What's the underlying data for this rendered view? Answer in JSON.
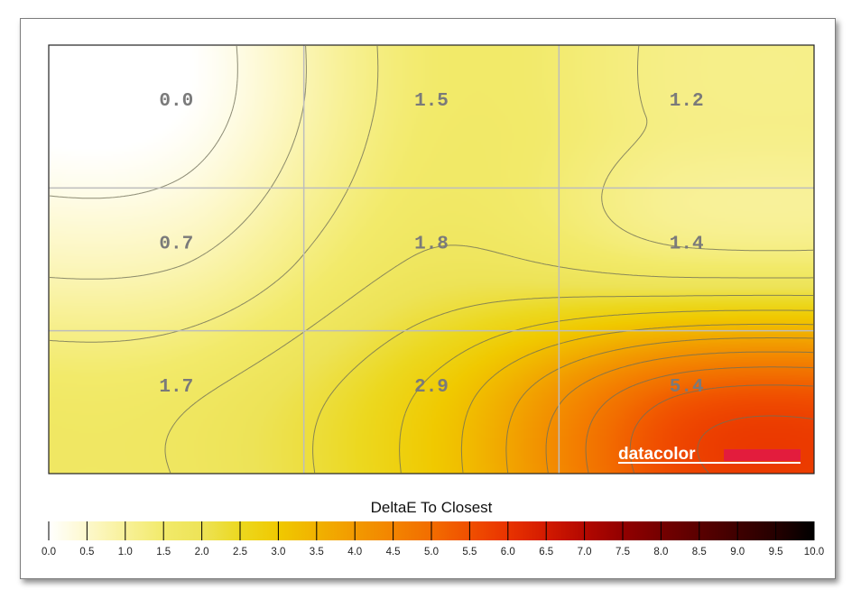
{
  "chart_data": {
    "type": "heatmap",
    "rows": 3,
    "cols": 3,
    "values": [
      [
        0.0,
        1.5,
        1.2
      ],
      [
        0.7,
        1.8,
        1.4
      ],
      [
        1.7,
        2.9,
        5.4
      ]
    ],
    "cell_labels": [
      [
        "0.0",
        "1.5",
        "1.2"
      ],
      [
        "0.7",
        "1.8",
        "1.4"
      ],
      [
        "1.7",
        "2.9",
        "5.4"
      ]
    ],
    "contours": true,
    "grid": true,
    "colorbar": {
      "title": "DeltaE To Closest",
      "range": [
        0,
        10
      ],
      "ticks": [
        "0.0",
        "0.5",
        "1.0",
        "1.5",
        "2.0",
        "2.5",
        "3.0",
        "3.5",
        "4.0",
        "4.5",
        "5.0",
        "5.5",
        "6.0",
        "6.5",
        "7.0",
        "7.5",
        "8.0",
        "8.5",
        "9.0",
        "9.5",
        "10.0"
      ],
      "colors": [
        "#ffffff",
        "#fdf8cc",
        "#f8f199",
        "#f2ea6a",
        "#ede357",
        "#ecd81f",
        "#f0c900",
        "#f1b200",
        "#f29a00",
        "#f38400",
        "#f26d00",
        "#f04f00",
        "#e93300",
        "#d31a00",
        "#b30800",
        "#920000",
        "#750000",
        "#5a0000",
        "#3f0000",
        "#250000",
        "#000000"
      ]
    },
    "logo_text": "datacolor",
    "logo_color": "#e31c3d"
  }
}
